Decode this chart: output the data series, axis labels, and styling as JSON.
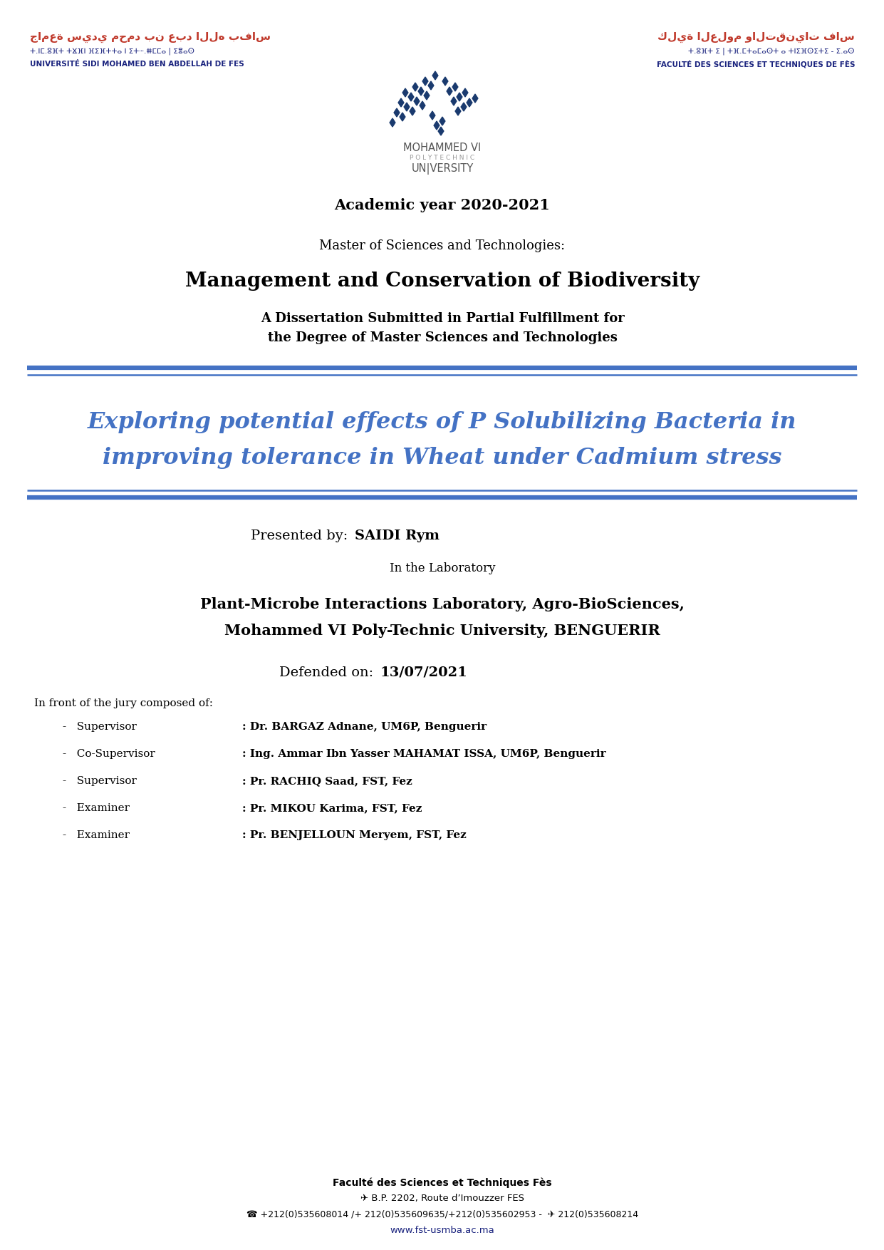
{
  "background_color": "#ffffff",
  "header_left_arabic": "جامعة سيدي محمد بن عبد الله بفاس",
  "header_left_tifinagh": "ⵜ.ⵏⵎ.ⵓⴼⵜ ⵜⴴⴼⵏ ⴼⵉⴼⵜⵜⴰ ⵏ ⵉⵜⵈ.ⵌⵎⵎⴰ | ⵉⴻⴰⵙ",
  "header_left_french": "UNIVERSITÉ SIDI MOHAMED BEN ABDELLAH DE FES",
  "header_right_arabic": "كلية العلوم والتقنيات فاس",
  "header_right_tifinagh": "ⵜ.ⵓⴼⵜ ⵉ | ⵜⴼ.ⵎⵜⴰⵎⴰⵙⵜ ⴰ ⵜⵏⵉⴼⵙⵉⵜⵉ - ⵉ.ⴰⵙ",
  "header_right_french": "FACULTÉ DES SCIENCES ET TECHNIQUES DE FÈS",
  "header_color_arabic": "#c0392b",
  "header_color_tifinagh": "#1a237e",
  "header_color_french": "#1a237e",
  "divider_color": "#4472c4",
  "title_color": "#4472c4",
  "academic_year": "Academic year 2020-2021",
  "master_label": "Master of Sciences and Technologies:",
  "master_program": "Management and Conservation of Biodiversity",
  "dissertation_line1": "A Dissertation Submitted in Partial Fulfillment for",
  "dissertation_line2": "the Degree of Master Sciences and Technologies",
  "thesis_title_line1": "Exploring potential effects of P Solubilizing Bacteria in",
  "thesis_title_line2": "improving tolerance in Wheat under Cadmium stress",
  "presented_by_label": "Presented by: ",
  "presented_by_name": "SAIDI Rym",
  "laboratory_label": "In the Laboratory",
  "lab_line1": "Plant-Microbe Interactions Laboratory, Agro-BioSciences,",
  "lab_line2": "Mohammed VI Poly-Technic University, BENGUERIR",
  "defended_label": "Defended on: ",
  "defended_date": "13/07/2021",
  "jury_intro": "In front of the jury composed of:",
  "jury": [
    {
      "role": "Supervisor",
      "name": "Dr. BARGAZ Adnane, UM6P, Benguerir"
    },
    {
      "role": "Co-Supervisor",
      "name": "Ing. Ammar Ibn Yasser MAHAMAT ISSA, UM6P, Benguerir"
    },
    {
      "role": "Supervisor",
      "name": "Pr. RACHIQ Saad, FST, Fez"
    },
    {
      "role": "Examiner",
      "name": "Pr. MIKOU Karima, FST, Fez"
    },
    {
      "role": "Examiner",
      "name": "Pr. BENJELLOUN Meryem, FST, Fez"
    }
  ],
  "footer1": "Faculté des Sciences et Techniques Fès",
  "footer2": "✈ B.P. 2202, Route d’Imouzzer FES",
  "footer3": "☎ +212(0)535608014 /+ 212(0)535609635/+212(0)535602953 -  ✈ 212(0)535608214",
  "footer4": "www.fst-usmba.ac.ma",
  "footer_color": "#000000",
  "footer_link_color": "#1a237e",
  "m6p_line1": "MOHAMMED VI",
  "m6p_line2": "P O L Y T E C H N I C",
  "m6p_line3": "UN|VERSITY",
  "m6p_color1": "#555555",
  "m6p_color2": "#999999",
  "logo_diamond_color": "#1a3a6e"
}
